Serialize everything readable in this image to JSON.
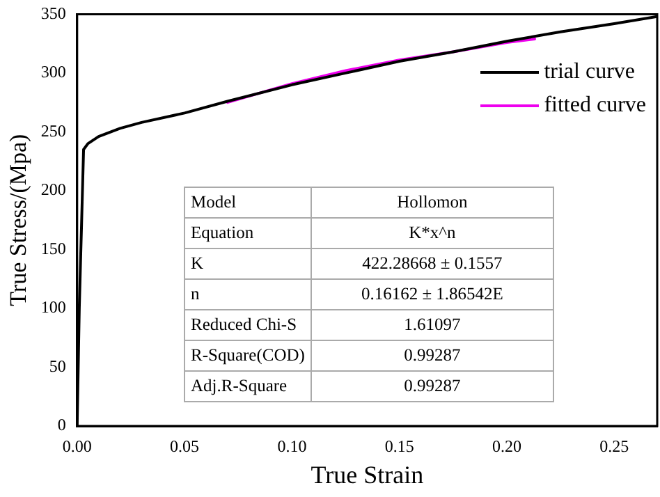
{
  "chart_data": {
    "type": "line",
    "xlabel": "True Strain",
    "ylabel": "True Stress/(Mpa)",
    "xlim": [
      0,
      0.27
    ],
    "xticks": [
      {
        "value": 0,
        "label": "0.00"
      },
      {
        "value": 0.05,
        "label": "0.05"
      },
      {
        "value": 0.1,
        "label": "0.10"
      },
      {
        "value": 0.15,
        "label": "0.15"
      },
      {
        "value": 0.2,
        "label": "0.20"
      },
      {
        "value": 0.25,
        "label": "0.25"
      }
    ],
    "ylim": [
      0,
      350
    ],
    "yticks": [
      0,
      50,
      100,
      150,
      200,
      250,
      300,
      350
    ],
    "series": [
      {
        "name": "trial curve",
        "color": "#000000",
        "x": [
          0,
          0.001,
          0.003,
          0.005,
          0.01,
          0.02,
          0.03,
          0.05,
          0.07,
          0.1,
          0.125,
          0.15,
          0.175,
          0.2,
          0.225,
          0.25,
          0.27
        ],
        "values": [
          0,
          100,
          235,
          240,
          246,
          253,
          258,
          266,
          276,
          290,
          300,
          310,
          318,
          327,
          335,
          342,
          348
        ]
      },
      {
        "name": "fitted curve",
        "color": "#ee00ee",
        "x": [
          0.07,
          0.1,
          0.125,
          0.15,
          0.175,
          0.2,
          0.213
        ],
        "values": [
          275,
          291,
          302,
          311,
          318,
          326,
          329
        ]
      }
    ],
    "legend": "top right",
    "grid": false,
    "marker": "none",
    "line_style": "solid",
    "annotations": [
      "Model",
      "Hollomon",
      "Equation",
      "K*x^n",
      "K",
      "422.28668 ± 0.1557",
      "n",
      "0.16162 ± 1.86542E",
      "Reduced Chi-S",
      "1.61097",
      "R-Square(COD)",
      "0.99287",
      "Adj.R-Square",
      "0.99287"
    ]
  }
}
